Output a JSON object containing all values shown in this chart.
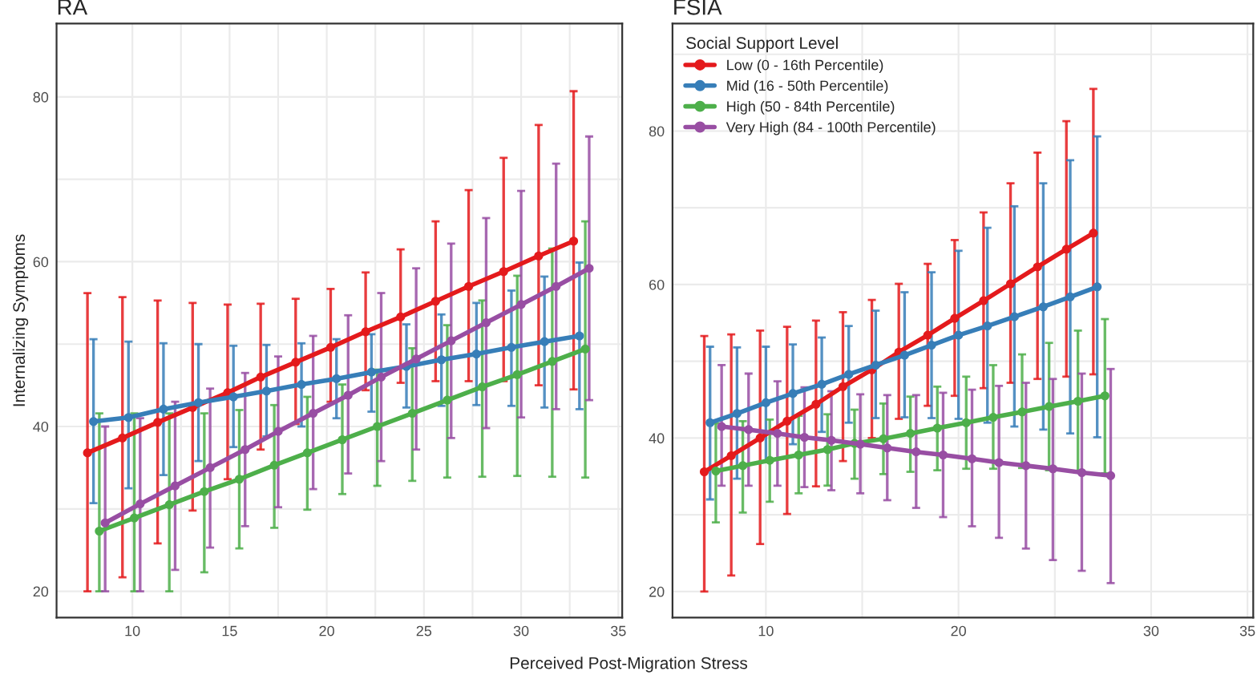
{
  "chart_data": [
    {
      "type": "line",
      "title": "RA",
      "xlabel": "Perceived Post-Migration Stress",
      "ylabel": "Internalizing Symptoms",
      "xlim": [
        6.1,
        35.2
      ],
      "ylim": [
        16.8,
        88.9
      ],
      "xticks": [
        10,
        {
          "value": 12.5,
          "label": null
        },
        15,
        {
          "value": 17.5,
          "label": null
        },
        20,
        {
          "value": 22.5,
          "label": null
        },
        25,
        {
          "value": 27.5,
          "label": null
        },
        30,
        {
          "value": 32.5,
          "label": null
        },
        35
      ],
      "yticks": [
        20,
        {
          "value": 30,
          "label": null
        },
        40,
        {
          "value": 50,
          "label": null
        },
        60,
        {
          "value": 70,
          "label": null
        },
        80
      ],
      "grid": true,
      "marker": "circle",
      "line_style": "solid",
      "series": [
        {
          "color": "#e41a1c",
          "x": [
            7.69,
            9.49,
            11.3,
            13.1,
            14.9,
            16.6,
            18.4,
            20.2,
            22.0,
            23.8,
            25.6,
            27.3,
            29.1,
            30.9,
            32.7
          ],
          "values": [
            36.8,
            38.6,
            40.5,
            42.3,
            44.1,
            46.0,
            47.8,
            49.6,
            51.5,
            53.3,
            55.2,
            57.0,
            58.8,
            60.7,
            62.5
          ],
          "errors": [
            [
              20,
              56.2
            ],
            [
              21.7,
              55.7
            ],
            [
              25.8,
              55.3
            ],
            [
              29.8,
              55.0
            ],
            [
              33.6,
              54.8
            ],
            [
              37.2,
              54.9
            ],
            [
              40.3,
              55.5
            ],
            [
              43.0,
              56.7
            ],
            [
              44.4,
              58.7
            ],
            [
              45.3,
              61.5
            ],
            [
              45.5,
              64.9
            ],
            [
              45.5,
              68.7
            ],
            [
              45.5,
              72.6
            ],
            [
              45.0,
              76.6
            ],
            [
              44.5,
              80.7
            ]
          ]
        },
        {
          "color": "#377eb8",
          "x": [
            8.0,
            9.8,
            11.6,
            13.4,
            15.2,
            16.9,
            18.7,
            20.5,
            22.3,
            24.1,
            25.9,
            27.7,
            29.5,
            31.2,
            33.0
          ],
          "values": [
            40.6,
            41.1,
            42.1,
            42.9,
            43.6,
            44.3,
            45.1,
            45.8,
            46.6,
            47.3,
            48.1,
            48.8,
            49.6,
            50.3,
            51.0
          ],
          "errors": [
            [
              30.7,
              50.6
            ],
            [
              32.5,
              50.3
            ],
            [
              34.1,
              50.1
            ],
            [
              35.8,
              50.0
            ],
            [
              37.5,
              49.8
            ],
            [
              38.8,
              49.9
            ],
            [
              40.0,
              50.1
            ],
            [
              41.0,
              50.6
            ],
            [
              41.8,
              51.2
            ],
            [
              42.3,
              52.4
            ],
            [
              42.5,
              53.6
            ],
            [
              42.6,
              55.0
            ],
            [
              42.5,
              56.5
            ],
            [
              42.3,
              58.2
            ],
            [
              42.1,
              59.9
            ]
          ]
        },
        {
          "color": "#4daf4a",
          "x": [
            8.3,
            10.1,
            11.9,
            13.7,
            15.5,
            17.3,
            19.0,
            20.8,
            22.6,
            24.4,
            26.2,
            28.0,
            29.8,
            31.6,
            33.3
          ],
          "values": [
            27.3,
            28.9,
            30.5,
            32.1,
            33.6,
            35.3,
            36.8,
            38.4,
            40.0,
            41.6,
            43.2,
            44.8,
            46.3,
            47.9,
            49.4
          ],
          "errors": [
            [
              20,
              41.6
            ],
            [
              20,
              41.6
            ],
            [
              20,
              41.6
            ],
            [
              22.3,
              41.6
            ],
            [
              25.2,
              42.0
            ],
            [
              27.7,
              42.6
            ],
            [
              29.9,
              43.6
            ],
            [
              31.8,
              45.1
            ],
            [
              32.8,
              46.9
            ],
            [
              33.4,
              49.5
            ],
            [
              33.8,
              52.3
            ],
            [
              33.9,
              55.3
            ],
            [
              34.0,
              58.3
            ],
            [
              33.9,
              61.6
            ],
            [
              33.8,
              64.9
            ]
          ]
        },
        {
          "color": "#984ea3",
          "x": [
            8.6,
            10.4,
            12.2,
            14.0,
            15.8,
            17.5,
            19.3,
            21.1,
            22.8,
            24.6,
            26.4,
            28.2,
            30.0,
            31.8,
            33.5
          ],
          "values": [
            28.3,
            30.6,
            32.8,
            35.0,
            37.2,
            39.4,
            41.6,
            43.8,
            46.0,
            48.2,
            50.4,
            52.6,
            54.8,
            57.0,
            59.2
          ],
          "errors": [
            [
              20,
              40.0
            ],
            [
              20,
              41.0
            ],
            [
              22.6,
              43.0
            ],
            [
              25.3,
              44.6
            ],
            [
              27.9,
              46.5
            ],
            [
              30.2,
              48.5
            ],
            [
              32.4,
              51.0
            ],
            [
              34.3,
              53.5
            ],
            [
              35.8,
              56.2
            ],
            [
              37.2,
              59.2
            ],
            [
              38.6,
              62.2
            ],
            [
              39.8,
              65.3
            ],
            [
              41.1,
              68.6
            ],
            [
              42.1,
              71.9
            ],
            [
              43.2,
              75.2
            ]
          ]
        }
      ]
    },
    {
      "type": "line",
      "title": "FSIA",
      "legend_title": "Social Support Level",
      "legend": "top left",
      "xlim": [
        5.15,
        35.3
      ],
      "ylim": [
        16.6,
        94.0
      ],
      "xticks": [
        10,
        {
          "value": 15,
          "label": null
        },
        20,
        {
          "value": 25,
          "label": null
        },
        30,
        35
      ],
      "yticks": [
        20,
        {
          "value": 30,
          "label": null
        },
        40,
        {
          "value": 50,
          "label": null
        },
        60,
        {
          "value": 70,
          "label": null
        },
        80,
        {
          "value": 90,
          "label": null
        }
      ],
      "grid": true,
      "marker": "circle",
      "line_style": "solid",
      "series": [
        {
          "name": "Low (0 - 16th Percentile)",
          "color": "#e41a1c",
          "x": [
            6.8,
            8.2,
            9.7,
            11.1,
            12.6,
            14.0,
            15.5,
            16.9,
            18.4,
            19.8,
            21.3,
            22.7,
            24.1,
            25.6,
            27.0
          ],
          "values": [
            35.6,
            37.7,
            40.0,
            42.2,
            44.4,
            46.7,
            48.9,
            51.2,
            53.4,
            55.6,
            57.9,
            60.1,
            62.3,
            64.6,
            66.7
          ],
          "errors": [
            [
              20,
              53.3
            ],
            [
              22.1,
              53.5
            ],
            [
              26.2,
              54.0
            ],
            [
              30.1,
              54.5
            ],
            [
              33.7,
              55.3
            ],
            [
              37.0,
              56.4
            ],
            [
              40.0,
              58.0
            ],
            [
              42.5,
              60.1
            ],
            [
              44.2,
              62.7
            ],
            [
              45.5,
              65.8
            ],
            [
              46.5,
              69.4
            ],
            [
              47.2,
              73.2
            ],
            [
              47.7,
              77.2
            ],
            [
              48.0,
              81.3
            ],
            [
              48.3,
              85.5
            ]
          ]
        },
        {
          "name": "Mid (16 - 50th Percentile)",
          "color": "#377eb8",
          "x": [
            7.1,
            8.5,
            10.0,
            11.4,
            12.9,
            14.3,
            15.7,
            17.2,
            18.6,
            20.0,
            21.5,
            22.9,
            24.4,
            25.8,
            27.2
          ],
          "values": [
            42.0,
            43.2,
            44.6,
            45.8,
            47.0,
            48.3,
            49.5,
            50.8,
            52.1,
            53.4,
            54.6,
            55.8,
            57.1,
            58.4,
            59.7
          ],
          "errors": [
            [
              32.0,
              51.9
            ],
            [
              34.7,
              51.8
            ],
            [
              37.0,
              51.9
            ],
            [
              39.2,
              52.2
            ],
            [
              40.8,
              53.1
            ],
            [
              42.0,
              54.6
            ],
            [
              42.6,
              56.6
            ],
            [
              42.7,
              59.0
            ],
            [
              42.6,
              61.6
            ],
            [
              42.5,
              64.4
            ],
            [
              42.0,
              67.4
            ],
            [
              41.5,
              70.2
            ],
            [
              41.1,
              73.2
            ],
            [
              40.6,
              76.2
            ],
            [
              40.1,
              79.3
            ]
          ]
        },
        {
          "name": "High (50 - 84th Percentile)",
          "color": "#4daf4a",
          "x": [
            7.4,
            8.8,
            10.2,
            11.7,
            13.2,
            14.6,
            16.1,
            17.5,
            18.9,
            20.4,
            21.8,
            23.3,
            24.7,
            26.2,
            27.6
          ],
          "values": [
            35.7,
            36.4,
            37.1,
            37.8,
            38.5,
            39.3,
            39.9,
            40.6,
            41.3,
            42.0,
            42.7,
            43.4,
            44.1,
            44.8,
            45.5
          ],
          "errors": [
            [
              29.0,
              41.9
            ],
            [
              30.3,
              42.2
            ],
            [
              31.7,
              42.4
            ],
            [
              32.8,
              42.9
            ],
            [
              33.8,
              43.1
            ],
            [
              34.7,
              43.7
            ],
            [
              35.3,
              44.5
            ],
            [
              35.6,
              45.4
            ],
            [
              35.8,
              46.7
            ],
            [
              36.0,
              48.0
            ],
            [
              36.0,
              49.5
            ],
            [
              36.1,
              50.9
            ],
            [
              35.8,
              52.4
            ],
            [
              35.7,
              54.0
            ],
            [
              35.4,
              55.5
            ]
          ]
        },
        {
          "name": "Very High (84 - 100th Percentile)",
          "color": "#984ea3",
          "x": [
            7.7,
            9.1,
            10.6,
            12.0,
            13.4,
            14.9,
            16.3,
            17.8,
            19.2,
            20.7,
            22.1,
            23.5,
            24.9,
            26.4,
            27.9
          ],
          "values": [
            41.5,
            41.1,
            40.6,
            40.1,
            39.7,
            39.2,
            38.7,
            38.2,
            37.8,
            37.3,
            36.8,
            36.4,
            36.0,
            35.5,
            35.1
          ],
          "errors": [
            [
              33.8,
              49.5
            ],
            [
              33.8,
              48.4
            ],
            [
              33.8,
              47.4
            ],
            [
              33.6,
              46.6
            ],
            [
              33.2,
              46.1
            ],
            [
              32.8,
              45.7
            ],
            [
              31.9,
              45.6
            ],
            [
              30.9,
              45.6
            ],
            [
              29.7,
              45.9
            ],
            [
              28.5,
              46.3
            ],
            [
              27.0,
              46.8
            ],
            [
              25.6,
              47.2
            ],
            [
              24.1,
              47.7
            ],
            [
              22.7,
              48.4
            ],
            [
              21.1,
              49.0
            ]
          ]
        }
      ]
    }
  ]
}
